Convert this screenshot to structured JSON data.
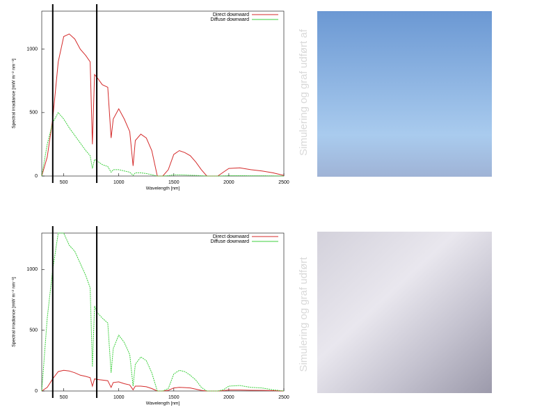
{
  "chart_data": [
    {
      "type": "line",
      "x_label": "Wavelength [nm]",
      "y_label": "Spectral irradiance [mW m⁻² nm⁻¹]",
      "x": [
        300,
        350,
        400,
        450,
        500,
        550,
        600,
        650,
        700,
        740,
        760,
        780,
        800,
        850,
        900,
        930,
        950,
        1000,
        1050,
        1100,
        1130,
        1150,
        1200,
        1250,
        1300,
        1350,
        1400,
        1450,
        1500,
        1550,
        1600,
        1650,
        1700,
        1750,
        1800,
        1850,
        1900,
        1950,
        2000,
        2100,
        2200,
        2300,
        2400,
        2500
      ],
      "series": [
        {
          "name": "Direct downward",
          "color": "#d42a2a",
          "values": [
            0,
            150,
            450,
            900,
            1100,
            1120,
            1080,
            1000,
            950,
            900,
            250,
            800,
            780,
            720,
            700,
            300,
            450,
            530,
            450,
            350,
            80,
            280,
            330,
            300,
            200,
            0,
            0,
            50,
            170,
            200,
            185,
            160,
            110,
            50,
            0,
            0,
            0,
            30,
            60,
            65,
            50,
            40,
            25,
            5
          ]
        },
        {
          "name": "Diffuse downward",
          "color": "#3ccf3c",
          "values": [
            0,
            250,
            420,
            500,
            450,
            380,
            320,
            260,
            200,
            160,
            60,
            130,
            120,
            90,
            75,
            30,
            50,
            50,
            40,
            30,
            5,
            25,
            25,
            20,
            10,
            0,
            0,
            3,
            10,
            10,
            8,
            6,
            5,
            2,
            0,
            0,
            0,
            1,
            3,
            3,
            2,
            2,
            1,
            0
          ]
        }
      ],
      "vlines": [
        400,
        800
      ],
      "xlim": [
        300,
        2500
      ],
      "ylim": [
        0,
        1300
      ],
      "xticks": [
        500,
        1000,
        1500,
        2000,
        2500
      ],
      "yticks": [
        0,
        500,
        1000
      ],
      "legend": "top-right"
    },
    {
      "type": "line",
      "x_label": "Wavelength [nm]",
      "y_label": "Spectral irradiance [mW m⁻² nm⁻¹]",
      "x": [
        300,
        350,
        400,
        450,
        500,
        550,
        600,
        650,
        700,
        740,
        760,
        780,
        800,
        850,
        900,
        930,
        950,
        1000,
        1050,
        1100,
        1130,
        1150,
        1200,
        1250,
        1300,
        1350,
        1400,
        1450,
        1500,
        1550,
        1600,
        1650,
        1700,
        1750,
        1800,
        1850,
        1900,
        1950,
        2000,
        2100,
        2200,
        2300,
        2400,
        2500
      ],
      "series": [
        {
          "name": "Direct downward",
          "color": "#d42a2a",
          "values": [
            0,
            30,
            100,
            160,
            170,
            165,
            150,
            130,
            120,
            110,
            40,
            100,
            95,
            90,
            85,
            30,
            70,
            75,
            60,
            50,
            10,
            40,
            40,
            35,
            20,
            0,
            0,
            5,
            25,
            30,
            28,
            25,
            15,
            5,
            0,
            0,
            0,
            3,
            8,
            8,
            6,
            5,
            3,
            0
          ]
        },
        {
          "name": "Diffuse downward",
          "color": "#3ccf3c",
          "values": [
            0,
            600,
            1000,
            1300,
            1300,
            1200,
            1150,
            1050,
            950,
            850,
            200,
            700,
            650,
            600,
            560,
            150,
            350,
            460,
            400,
            300,
            40,
            220,
            280,
            250,
            150,
            0,
            0,
            20,
            140,
            170,
            160,
            130,
            90,
            30,
            0,
            0,
            0,
            10,
            40,
            45,
            30,
            25,
            10,
            0
          ]
        }
      ],
      "vlines": [
        400,
        800
      ],
      "xlim": [
        300,
        2500
      ],
      "ylim": [
        0,
        1300
      ],
      "xticks": [
        500,
        1000,
        1500,
        2000,
        2500
      ],
      "yticks": [
        0,
        500,
        1000
      ],
      "legend": "top-right"
    }
  ],
  "side_notes": [
    "Simulering og graf udført af",
    "Simulering og graf udført"
  ]
}
